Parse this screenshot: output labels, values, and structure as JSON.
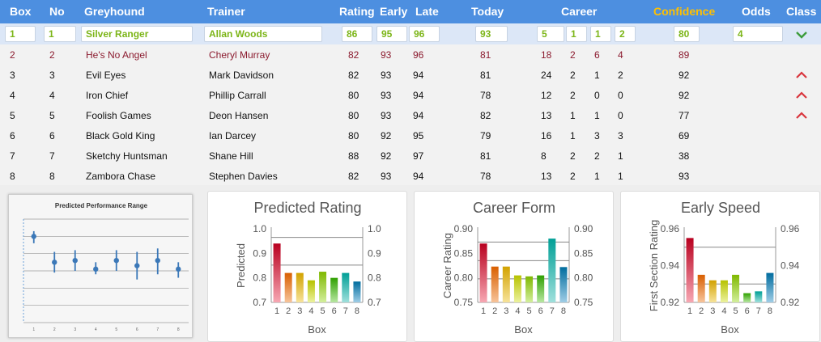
{
  "header": {
    "box": "Box",
    "no": "No",
    "greyhound": "Greyhound",
    "trainer": "Trainer",
    "rating": "Rating",
    "early": "Early",
    "late": "Late",
    "today": "Today",
    "career": "Career",
    "confidence": "Confidence",
    "odds": "Odds",
    "class": "Class"
  },
  "colors": {
    "header_bg": "#4d8fe0",
    "confidence_header": "#ffc000",
    "selected_text": "#7cb518",
    "alt_red": "#8b1a2e",
    "up_caret": "#d9363e",
    "down_caret": "#3c9c3c"
  },
  "selected": {
    "box": "1",
    "no": "1",
    "greyhound": "Silver Ranger",
    "trainer": "Allan Woods",
    "rating": "86",
    "early": "95",
    "late": "96",
    "today": "93",
    "c1": "5",
    "c2": "1",
    "c3": "1",
    "c4": "2",
    "confidence": "80",
    "odds": "4",
    "class_icon": "chevron-down-icon"
  },
  "rows": [
    {
      "box": "2",
      "no": "2",
      "greyhound": "He's No Angel",
      "trainer": "Cheryl Murray",
      "rating": "82",
      "early": "93",
      "late": "96",
      "today": "81",
      "c1": "18",
      "c2": "2",
      "c3": "6",
      "c4": "4",
      "confidence": "89",
      "class_icon": ""
    },
    {
      "box": "3",
      "no": "3",
      "greyhound": "Evil Eyes",
      "trainer": "Mark Davidson",
      "rating": "82",
      "early": "93",
      "late": "94",
      "today": "81",
      "c1": "24",
      "c2": "2",
      "c3": "1",
      "c4": "2",
      "confidence": "92",
      "class_icon": "chevron-up-icon"
    },
    {
      "box": "4",
      "no": "4",
      "greyhound": "Iron Chief",
      "trainer": "Phillip Carrall",
      "rating": "80",
      "early": "93",
      "late": "94",
      "today": "78",
      "c1": "12",
      "c2": "2",
      "c3": "0",
      "c4": "0",
      "confidence": "92",
      "class_icon": "chevron-up-icon"
    },
    {
      "box": "5",
      "no": "5",
      "greyhound": "Foolish Games",
      "trainer": "Deon Hansen",
      "rating": "80",
      "early": "93",
      "late": "94",
      "today": "82",
      "c1": "13",
      "c2": "1",
      "c3": "1",
      "c4": "0",
      "confidence": "77",
      "class_icon": "chevron-up-icon"
    },
    {
      "box": "6",
      "no": "6",
      "greyhound": "Black Gold King",
      "trainer": "Ian Darcey",
      "rating": "80",
      "early": "92",
      "late": "95",
      "today": "79",
      "c1": "16",
      "c2": "1",
      "c3": "3",
      "c4": "3",
      "confidence": "69",
      "class_icon": ""
    },
    {
      "box": "7",
      "no": "7",
      "greyhound": "Sketchy Huntsman",
      "trainer": "Shane Hill",
      "rating": "88",
      "early": "92",
      "late": "97",
      "today": "81",
      "c1": "8",
      "c2": "2",
      "c3": "2",
      "c4": "1",
      "confidence": "38",
      "class_icon": ""
    },
    {
      "box": "8",
      "no": "8",
      "greyhound": "Zambora Chase",
      "trainer": "Stephen Davies",
      "rating": "82",
      "early": "93",
      "late": "94",
      "today": "78",
      "c1": "13",
      "c2": "2",
      "c3": "1",
      "c4": "1",
      "confidence": "93",
      "class_icon": ""
    }
  ],
  "chart_data": [
    {
      "type": "scatter",
      "title": "Predicted Performance Range",
      "x": [
        1,
        2,
        3,
        4,
        5,
        6,
        7,
        8
      ],
      "tick_labels": [
        "1",
        "2",
        "3",
        "4",
        "5",
        "6",
        "7",
        "8"
      ],
      "y": [
        0.9,
        0.75,
        0.76,
        0.71,
        0.76,
        0.73,
        0.76,
        0.71
      ],
      "y_low": [
        0.86,
        0.69,
        0.7,
        0.68,
        0.7,
        0.65,
        0.68,
        0.66
      ],
      "y_high": [
        0.93,
        0.81,
        0.82,
        0.75,
        0.82,
        0.81,
        0.83,
        0.75
      ],
      "ylim": [
        0.4,
        1.0
      ],
      "grid": true,
      "color": "#3b78b8"
    },
    {
      "type": "bar",
      "title": "Predicted Rating",
      "xlabel": "Box",
      "ylabel": "Predicted",
      "categories": [
        "1",
        "2",
        "3",
        "4",
        "5",
        "6",
        "7",
        "8"
      ],
      "values": [
        0.94,
        0.82,
        0.82,
        0.79,
        0.825,
        0.8,
        0.82,
        0.785
      ],
      "ylim": [
        0.7,
        1.0
      ],
      "yticks": [
        "0.7",
        "0.8",
        "0.9",
        "1.0"
      ],
      "reference_lines": [
        0.965,
        0.852
      ],
      "secondary_axis": true
    },
    {
      "type": "bar",
      "title": "Career Form",
      "xlabel": "Box",
      "ylabel": "Career Rating",
      "categories": [
        "1",
        "2",
        "3",
        "4",
        "5",
        "6",
        "7",
        "8"
      ],
      "values": [
        0.87,
        0.823,
        0.823,
        0.805,
        0.803,
        0.805,
        0.88,
        0.822
      ],
      "ylim": [
        0.75,
        0.9
      ],
      "yticks": [
        "0.75",
        "0.80",
        "0.85",
        "0.90"
      ],
      "reference_lines": [
        0.873,
        0.835,
        0.798
      ],
      "secondary_axis": true
    },
    {
      "type": "bar",
      "title": "Early Speed",
      "xlabel": "Box",
      "ylabel": "First Section Rating",
      "categories": [
        "1",
        "2",
        "3",
        "4",
        "5",
        "6",
        "7",
        "8"
      ],
      "values": [
        0.955,
        0.935,
        0.932,
        0.932,
        0.935,
        0.925,
        0.926,
        0.936
      ],
      "ylim": [
        0.92,
        0.96
      ],
      "yticks": [
        "0.92",
        "0.94",
        "0.96"
      ],
      "reference_lines": [
        0.95,
        0.93
      ],
      "secondary_axis": true
    }
  ]
}
